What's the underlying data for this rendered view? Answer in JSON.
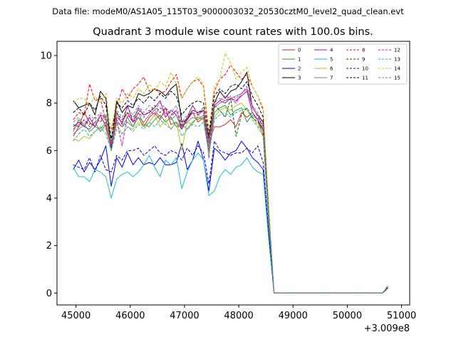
{
  "chart_data": {
    "type": "line",
    "suptitle": "Data file: modeM0/AS1A05_115T03_9000003032_20530cztM0_level2_quad_clean.evt",
    "title": "Quadrant 3 module wise count rates with 100.0s bins.",
    "xlabel": "",
    "ylabel": "",
    "x_offset_label": "+3.009e8",
    "xlim": [
      44650,
      51150
    ],
    "ylim": [
      -0.5,
      10.6
    ],
    "xticks": [
      45000,
      46000,
      47000,
      48000,
      49000,
      50000,
      51000
    ],
    "xtick_labels": [
      "45000",
      "46000",
      "47000",
      "48000",
      "49000",
      "50000",
      "51000"
    ],
    "yticks": [
      0,
      2,
      4,
      6,
      8,
      10
    ],
    "ytick_labels": [
      "0",
      "2",
      "4",
      "6",
      "8",
      "10"
    ],
    "legend_position": "upper-right",
    "legend_columns": 4,
    "x": [
      44950,
      45050,
      45150,
      45250,
      45350,
      45450,
      45550,
      45650,
      45750,
      45850,
      45950,
      46050,
      46150,
      46250,
      46350,
      46450,
      46550,
      46650,
      46750,
      46850,
      46950,
      47050,
      47150,
      47250,
      47350,
      47450,
      47550,
      47650,
      47750,
      47850,
      47950,
      48050,
      48150,
      48250,
      48350,
      48450,
      48550,
      48650,
      48750,
      48850,
      48950,
      49050,
      49150,
      49250,
      49350,
      49450,
      49550,
      49650,
      49750,
      49850,
      49950,
      50050,
      50150,
      50250,
      50350,
      50450,
      50550,
      50650,
      50750
    ],
    "series": [
      {
        "name": "0",
        "color": "#d62728",
        "dash": "solid",
        "values": [
          6.6,
          7.0,
          7.6,
          7.2,
          7.0,
          7.5,
          7.0,
          6.2,
          7.4,
          7.2,
          7.6,
          7.2,
          7.4,
          7.0,
          7.4,
          7.6,
          7.3,
          7.8,
          7.1,
          7.2,
          6.9,
          7.3,
          7.6,
          7.2,
          7.4,
          6.3,
          7.0,
          7.0,
          7.1,
          7.3,
          7.0,
          7.6,
          7.4,
          7.6,
          7.3,
          6.6,
          3.0,
          0.0,
          0.0,
          0.0,
          0.0,
          0.0,
          0.0,
          0.0,
          0.0,
          0.0,
          0.0,
          0.0,
          0.0,
          0.0,
          0.0,
          0.0,
          0.0,
          0.0,
          0.0,
          0.0,
          0.0,
          0.0,
          0.25
        ]
      },
      {
        "name": "1",
        "color": "#2ca02c",
        "dash": "solid",
        "values": [
          6.8,
          7.3,
          7.0,
          6.9,
          7.2,
          6.8,
          7.1,
          6.3,
          7.2,
          7.0,
          7.4,
          7.0,
          7.6,
          7.1,
          7.0,
          7.3,
          7.5,
          7.2,
          7.4,
          7.0,
          7.1,
          6.9,
          7.2,
          7.4,
          7.3,
          6.0,
          7.6,
          7.8,
          7.9,
          7.5,
          7.7,
          7.8,
          7.2,
          7.5,
          7.3,
          6.8,
          3.0,
          0.0,
          0.0,
          0.0,
          0.0,
          0.0,
          0.0,
          0.0,
          0.0,
          0.0,
          0.0,
          0.0,
          0.0,
          0.0,
          0.0,
          0.0,
          0.0,
          0.0,
          0.0,
          0.0,
          0.0,
          0.0,
          0.2
        ]
      },
      {
        "name": "2",
        "color": "#0000ff",
        "dash": "solid",
        "values": [
          5.2,
          5.6,
          5.1,
          5.5,
          5.2,
          5.6,
          6.2,
          4.5,
          5.7,
          5.3,
          5.9,
          5.4,
          5.7,
          5.4,
          5.5,
          5.4,
          5.7,
          5.4,
          5.4,
          5.5,
          6.3,
          5.2,
          5.6,
          6.4,
          5.6,
          4.3,
          6.1,
          5.9,
          5.6,
          5.9,
          6.0,
          6.4,
          6.1,
          5.7,
          5.5,
          5.2,
          2.5,
          0.0,
          0.0,
          0.0,
          0.0,
          0.0,
          0.0,
          0.0,
          0.0,
          0.0,
          0.0,
          0.0,
          0.0,
          0.0,
          0.0,
          0.0,
          0.0,
          0.0,
          0.0,
          0.0,
          0.0,
          0.0,
          0.2
        ]
      },
      {
        "name": "3",
        "color": "#000000",
        "dash": "solid",
        "values": [
          8.1,
          7.8,
          7.9,
          8.0,
          7.5,
          8.5,
          8.2,
          6.1,
          8.1,
          7.6,
          7.9,
          7.8,
          8.4,
          8.3,
          8.4,
          8.6,
          8.5,
          8.3,
          8.6,
          8.8,
          7.2,
          7.3,
          7.7,
          7.6,
          7.7,
          6.5,
          8.0,
          8.5,
          8.2,
          8.5,
          8.6,
          8.9,
          9.3,
          7.8,
          7.5,
          7.2,
          3.5,
          0.0,
          0.0,
          0.0,
          0.0,
          0.0,
          0.0,
          0.0,
          0.0,
          0.0,
          0.0,
          0.0,
          0.0,
          0.0,
          0.0,
          0.0,
          0.0,
          0.0,
          0.0,
          0.0,
          0.0,
          0.0,
          0.3
        ]
      },
      {
        "name": "4",
        "color": "#bf00bf",
        "dash": "solid",
        "values": [
          7.0,
          7.2,
          7.0,
          7.4,
          7.0,
          7.5,
          7.4,
          6.3,
          7.6,
          7.1,
          7.9,
          7.2,
          7.8,
          7.5,
          7.6,
          7.8,
          8.1,
          7.4,
          7.7,
          7.5,
          6.9,
          7.4,
          7.9,
          7.5,
          7.7,
          5.7,
          7.9,
          8.1,
          8.0,
          8.2,
          8.1,
          8.3,
          8.5,
          7.6,
          7.3,
          6.9,
          3.2,
          0.0,
          0.0,
          0.0,
          0.0,
          0.0,
          0.0,
          0.0,
          0.0,
          0.0,
          0.0,
          0.0,
          0.0,
          0.0,
          0.0,
          0.0,
          0.0,
          0.0,
          0.0,
          0.0,
          0.0,
          0.0,
          0.25
        ]
      },
      {
        "name": "5",
        "color": "#17becf",
        "dash": "solid",
        "values": [
          5.3,
          4.9,
          4.9,
          4.7,
          5.2,
          5.1,
          4.9,
          4.0,
          4.8,
          5.0,
          5.1,
          4.9,
          5.1,
          5.4,
          5.8,
          5.3,
          4.9,
          5.6,
          5.4,
          5.7,
          4.4,
          5.1,
          5.6,
          5.9,
          5.6,
          4.1,
          4.3,
          4.9,
          5.2,
          5.0,
          5.3,
          5.4,
          5.7,
          5.3,
          5.1,
          5.0,
          2.3,
          0.0,
          0.0,
          0.0,
          0.0,
          0.0,
          0.0,
          0.0,
          0.0,
          0.0,
          0.0,
          0.0,
          0.0,
          0.0,
          0.0,
          0.0,
          0.0,
          0.0,
          0.0,
          0.0,
          0.0,
          0.0,
          0.2
        ]
      },
      {
        "name": "6",
        "color": "#bcbd22",
        "dash": "solid",
        "values": [
          6.5,
          6.4,
          6.6,
          6.5,
          6.8,
          7.0,
          6.9,
          6.0,
          7.1,
          6.7,
          7.0,
          6.9,
          7.2,
          7.0,
          7.2,
          7.5,
          7.0,
          7.3,
          6.9,
          7.2,
          6.0,
          7.2,
          7.1,
          7.5,
          7.3,
          5.8,
          7.4,
          7.7,
          7.8,
          7.7,
          7.9,
          8.0,
          7.7,
          7.4,
          7.1,
          6.7,
          3.0,
          0.0,
          0.0,
          0.0,
          0.0,
          0.0,
          0.0,
          0.0,
          0.0,
          0.0,
          0.0,
          0.0,
          0.0,
          0.0,
          0.0,
          0.0,
          0.0,
          0.0,
          0.0,
          0.0,
          0.0,
          0.0,
          0.25
        ]
      },
      {
        "name": "7",
        "color": "#7f7f7f",
        "dash": "solid",
        "values": [
          6.7,
          6.9,
          7.1,
          6.8,
          7.0,
          6.9,
          7.2,
          6.0,
          7.3,
          7.0,
          7.2,
          7.0,
          7.4,
          7.2,
          7.5,
          7.7,
          7.4,
          7.6,
          7.3,
          7.5,
          7.0,
          7.2,
          7.4,
          7.3,
          7.5,
          6.4,
          7.8,
          8.0,
          8.1,
          8.2,
          8.3,
          8.4,
          8.6,
          7.8,
          7.5,
          7.0,
          3.3,
          0.0,
          0.0,
          0.0,
          0.0,
          0.0,
          0.0,
          0.0,
          0.0,
          0.0,
          0.0,
          0.0,
          0.0,
          0.0,
          0.0,
          0.0,
          0.0,
          0.0,
          0.0,
          0.0,
          0.0,
          0.0,
          0.25
        ]
      },
      {
        "name": "8",
        "color": "#ff0000",
        "dash": "dashed",
        "values": [
          7.3,
          7.6,
          7.5,
          8.8,
          8.1,
          8.2,
          7.2,
          6.9,
          7.8,
          8.6,
          8.2,
          8.6,
          8.8,
          9.1,
          8.5,
          8.6,
          8.4,
          8.5,
          8.9,
          9.2,
          8.2,
          8.6,
          8.9,
          9.0,
          8.7,
          6.6,
          8.5,
          9.0,
          9.2,
          9.6,
          9.3,
          9.0,
          9.2,
          8.7,
          8.3,
          7.7,
          3.6,
          0.0,
          0.0,
          0.0,
          0.0,
          0.0,
          0.0,
          0.0,
          0.0,
          0.0,
          0.0,
          0.0,
          0.0,
          0.0,
          0.0,
          0.0,
          0.0,
          0.0,
          0.0,
          0.0,
          0.0,
          0.0,
          0.3
        ]
      },
      {
        "name": "9",
        "color": "#006400",
        "dash": "dashed",
        "values": [
          7.1,
          7.0,
          7.3,
          7.1,
          7.4,
          7.2,
          7.5,
          6.4,
          7.6,
          7.3,
          7.6,
          7.4,
          7.7,
          7.5,
          7.6,
          7.9,
          7.6,
          7.8,
          7.5,
          7.7,
          7.0,
          7.4,
          7.7,
          7.6,
          7.8,
          6.2,
          7.9,
          7.7,
          7.4,
          8.2,
          6.6,
          7.5,
          7.8,
          7.4,
          7.2,
          6.9,
          3.1,
          0.0,
          0.0,
          0.0,
          0.0,
          0.0,
          0.0,
          0.0,
          0.0,
          0.0,
          0.0,
          0.0,
          0.0,
          0.0,
          0.0,
          0.0,
          0.0,
          0.0,
          0.0,
          0.0,
          0.0,
          0.0,
          0.25
        ]
      },
      {
        "name": "10",
        "color": "#0000cd",
        "dash": "dashed",
        "values": [
          5.4,
          5.3,
          5.2,
          5.7,
          5.1,
          5.8,
          5.2,
          5.1,
          5.8,
          5.6,
          6.0,
          6.0,
          6.1,
          5.8,
          6.0,
          6.2,
          5.9,
          5.8,
          6.0,
          5.9,
          5.6,
          6.1,
          5.8,
          6.2,
          5.9,
          4.6,
          6.4,
          6.0,
          5.9,
          5.8,
          5.9,
          5.9,
          6.1,
          5.9,
          6.2,
          5.5,
          2.6,
          0.0,
          0.0,
          0.0,
          0.0,
          0.0,
          0.0,
          0.0,
          0.0,
          0.0,
          0.0,
          0.0,
          0.0,
          0.0,
          0.0,
          0.0,
          0.0,
          0.0,
          0.0,
          0.0,
          0.0,
          0.0,
          0.2
        ]
      },
      {
        "name": "11",
        "color": "#000000",
        "dash": "dashed",
        "values": [
          7.6,
          7.8,
          7.5,
          8.0,
          7.7,
          8.3,
          7.9,
          6.5,
          8.0,
          7.8,
          8.1,
          7.9,
          8.2,
          8.0,
          8.3,
          8.1,
          8.4,
          8.2,
          8.5,
          8.3,
          7.5,
          7.8,
          8.0,
          8.1,
          8.0,
          6.7,
          8.3,
          8.6,
          8.4,
          8.7,
          8.8,
          8.6,
          8.9,
          8.3,
          7.9,
          7.4,
          3.4,
          0.0,
          0.0,
          0.0,
          0.0,
          0.0,
          0.0,
          0.0,
          0.0,
          0.0,
          0.0,
          0.0,
          0.0,
          0.0,
          0.0,
          0.0,
          0.0,
          0.0,
          0.0,
          0.0,
          0.0,
          0.0,
          0.3
        ]
      },
      {
        "name": "12",
        "color": "#e600e6",
        "dash": "dashed",
        "values": [
          6.9,
          7.1,
          7.3,
          7.0,
          7.2,
          7.4,
          7.1,
          6.2,
          7.3,
          6.2,
          7.5,
          7.2,
          7.6,
          7.4,
          7.7,
          7.5,
          7.8,
          7.6,
          7.4,
          7.7,
          7.1,
          7.4,
          7.6,
          7.5,
          7.7,
          6.0,
          7.9,
          8.1,
          8.3,
          8.2,
          8.0,
          8.4,
          8.7,
          7.9,
          7.4,
          7.0,
          3.2,
          0.0,
          0.0,
          0.0,
          0.0,
          0.0,
          0.0,
          0.0,
          0.0,
          0.0,
          0.0,
          0.0,
          0.0,
          0.0,
          0.0,
          0.0,
          0.0,
          0.0,
          0.0,
          0.0,
          0.0,
          0.0,
          0.25
        ]
      },
      {
        "name": "13",
        "color": "#20b2aa",
        "dash": "dashed",
        "values": [
          6.4,
          6.7,
          6.9,
          6.6,
          6.8,
          7.0,
          6.7,
          6.0,
          6.9,
          6.7,
          7.0,
          6.8,
          7.1,
          6.9,
          7.2,
          7.0,
          7.3,
          7.1,
          6.9,
          7.2,
          6.6,
          6.9,
          7.1,
          7.0,
          7.2,
          5.9,
          7.3,
          7.5,
          7.6,
          7.4,
          7.6,
          7.7,
          7.8,
          7.3,
          7.0,
          6.6,
          3.0,
          0.0,
          0.0,
          0.0,
          0.0,
          0.0,
          0.0,
          0.0,
          0.0,
          0.0,
          0.0,
          0.0,
          0.0,
          0.0,
          0.0,
          0.0,
          0.0,
          0.0,
          0.0,
          0.0,
          0.0,
          0.0,
          0.2
        ]
      },
      {
        "name": "14",
        "color": "#c8c800",
        "dash": "dashed",
        "values": [
          8.0,
          8.2,
          8.2,
          7.9,
          8.3,
          8.0,
          8.4,
          6.8,
          8.2,
          8.0,
          8.4,
          8.2,
          8.6,
          8.4,
          8.8,
          8.5,
          8.9,
          8.7,
          9.3,
          8.8,
          8.2,
          8.6,
          8.9,
          9.1,
          8.8,
          6.9,
          8.7,
          9.0,
          10.1,
          9.7,
          9.0,
          9.3,
          9.5,
          8.7,
          8.3,
          7.8,
          3.7,
          0.0,
          0.0,
          0.0,
          0.0,
          0.0,
          0.0,
          0.0,
          0.0,
          0.0,
          0.0,
          0.0,
          0.0,
          0.0,
          0.0,
          0.0,
          0.0,
          0.0,
          0.0,
          0.0,
          0.0,
          0.0,
          0.3
        ]
      },
      {
        "name": "15",
        "color": "#808080",
        "dash": "dashed",
        "values": [
          7.2,
          7.4,
          7.1,
          7.5,
          7.3,
          7.6,
          7.4,
          6.3,
          7.7,
          7.4,
          7.8,
          7.5,
          7.9,
          7.6,
          7.9,
          7.7,
          8.0,
          7.8,
          7.6,
          7.9,
          7.2,
          7.5,
          7.7,
          7.6,
          7.8,
          6.2,
          8.0,
          8.2,
          8.1,
          8.3,
          8.2,
          8.4,
          8.6,
          7.9,
          7.6,
          7.1,
          3.3,
          0.0,
          0.0,
          0.0,
          0.0,
          0.0,
          0.0,
          0.0,
          0.0,
          0.0,
          0.0,
          0.0,
          0.0,
          0.0,
          0.0,
          0.0,
          0.0,
          0.0,
          0.0,
          0.0,
          0.0,
          0.0,
          0.25
        ]
      }
    ]
  }
}
